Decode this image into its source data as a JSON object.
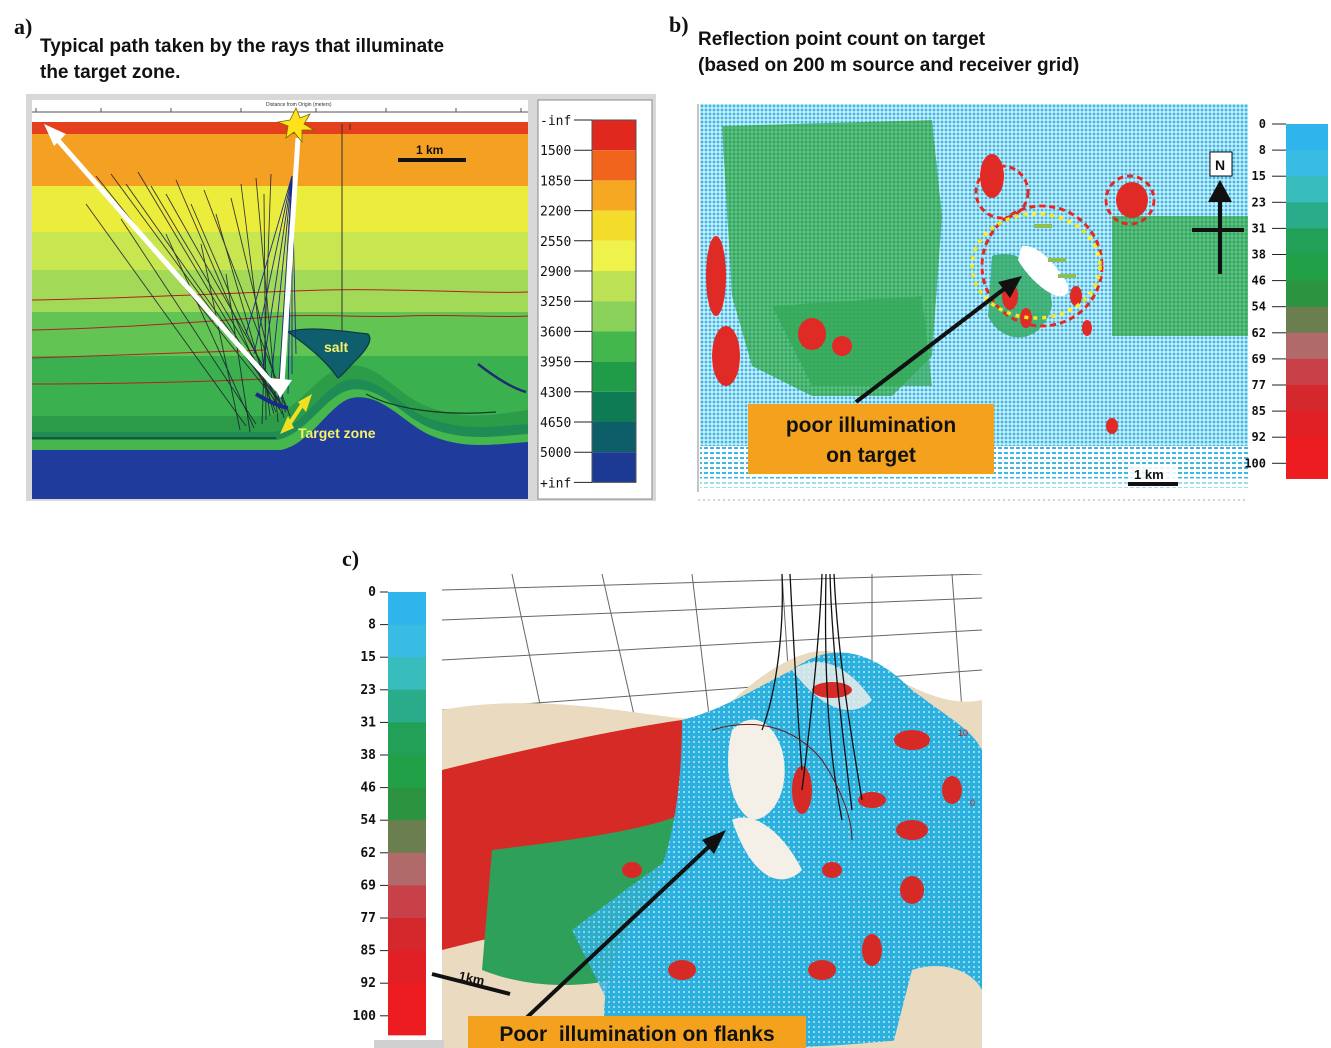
{
  "panel_a": {
    "letter": "a)",
    "title_line1": "Typical path taken by the rays that illuminate",
    "title_line2": "the target zone.",
    "scale_bar": "1 km",
    "salt_label": "salt",
    "target_label": "Target zone",
    "axis_caption": "Distance from Origin (meters)",
    "velocity_ticks": [
      "-inf",
      "1500",
      "1850",
      "2200",
      "2550",
      "2900",
      "3250",
      "3600",
      "3950",
      "4300",
      "4650",
      "5000",
      "+inf"
    ],
    "velocity_colors": [
      "#e0281e",
      "#f0641e",
      "#f7a823",
      "#f3dc2a",
      "#eef24a",
      "#bde256",
      "#8bd25a",
      "#43b74c",
      "#209c48",
      "#0e7b55",
      "#0e5e6a",
      "#1c3a94",
      "#22309c"
    ]
  },
  "panel_b": {
    "letter": "b)",
    "title_line1": "Reflection point count on target",
    "title_line2": "(based on 200 m source and receiver grid)",
    "north_label": "N",
    "scale_bar": "1 km",
    "callout_line1": "poor illumination",
    "callout_line2": "on target",
    "count_ticks": [
      "0",
      "8",
      "15",
      "23",
      "31",
      "38",
      "46",
      "54",
      "62",
      "69",
      "77",
      "85",
      "92",
      "100"
    ],
    "count_colors": [
      "#30b4ec",
      "#38bce4",
      "#38bcbc",
      "#2aac8a",
      "#22a058",
      "#22a048",
      "#2c9440",
      "#6a7e50",
      "#b06a6a",
      "#c84048",
      "#d4282c",
      "#e02024",
      "#ec1c20"
    ]
  },
  "panel_c": {
    "letter": "c)",
    "count_ticks": [
      "0",
      "8",
      "15",
      "23",
      "31",
      "38",
      "46",
      "54",
      "62",
      "69",
      "77",
      "85",
      "92",
      "100"
    ],
    "scale_bar": "1km",
    "callout": "Poor  illumination on flanks"
  }
}
